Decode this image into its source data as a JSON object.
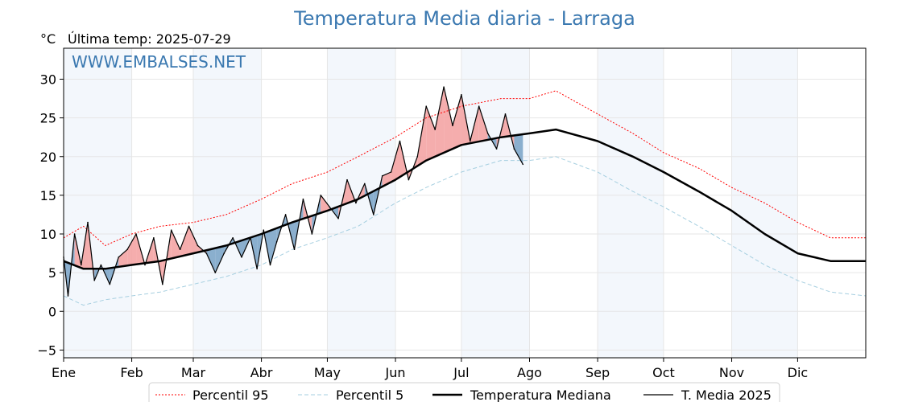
{
  "chart_data": {
    "type": "line",
    "title": "Temperatura Media diaria - Larraga",
    "unit_label": "°C",
    "last_temp_label": "Última temp: 2025-07-29",
    "watermark": "WWW.EMBALSES.NET",
    "xlabel": "",
    "ylabel": "",
    "ylim": [
      -6,
      34
    ],
    "y_ticks": [
      -5,
      0,
      5,
      10,
      15,
      20,
      25,
      30
    ],
    "y_tick_labels": [
      "−5",
      "0",
      "5",
      "10",
      "15",
      "20",
      "25",
      "30"
    ],
    "x_range_days": [
      1,
      366
    ],
    "months": [
      {
        "label": "Ene",
        "start_day": 1
      },
      {
        "label": "Feb",
        "start_day": 32
      },
      {
        "label": "Mar",
        "start_day": 60
      },
      {
        "label": "Abr",
        "start_day": 91
      },
      {
        "label": "May",
        "start_day": 121
      },
      {
        "label": "Jun",
        "start_day": 152
      },
      {
        "label": "Jul",
        "start_day": 182
      },
      {
        "label": "Ago",
        "start_day": 213
      },
      {
        "label": "Sep",
        "start_day": 244
      },
      {
        "label": "Oct",
        "start_day": 274
      },
      {
        "label": "Nov",
        "start_day": 305
      },
      {
        "label": "Dic",
        "start_day": 335
      }
    ],
    "grid": true,
    "legend_position": "bottom-center",
    "series": [
      {
        "name": "Percentil 95",
        "style": "dotted",
        "color": "#ff0000",
        "points": [
          [
            1,
            9.5
          ],
          [
            10,
            11
          ],
          [
            20,
            8.5
          ],
          [
            32,
            10
          ],
          [
            45,
            11
          ],
          [
            60,
            11.5
          ],
          [
            75,
            12.5
          ],
          [
            91,
            14.5
          ],
          [
            105,
            16.5
          ],
          [
            121,
            18
          ],
          [
            135,
            20
          ],
          [
            152,
            22.5
          ],
          [
            166,
            25
          ],
          [
            182,
            26.5
          ],
          [
            200,
            27.5
          ],
          [
            213,
            27.5
          ],
          [
            225,
            28.5
          ],
          [
            244,
            25.5
          ],
          [
            260,
            23
          ],
          [
            274,
            20.5
          ],
          [
            290,
            18.5
          ],
          [
            305,
            16
          ],
          [
            320,
            14
          ],
          [
            335,
            11.5
          ],
          [
            350,
            9.5
          ],
          [
            366,
            9.5
          ]
        ]
      },
      {
        "name": "Percentil 5",
        "style": "dashed",
        "color": "#a6cfe0",
        "points": [
          [
            1,
            2
          ],
          [
            10,
            0.8
          ],
          [
            20,
            1.5
          ],
          [
            32,
            2
          ],
          [
            45,
            2.5
          ],
          [
            60,
            3.5
          ],
          [
            75,
            4.5
          ],
          [
            91,
            6
          ],
          [
            105,
            8
          ],
          [
            121,
            9.5
          ],
          [
            135,
            11
          ],
          [
            152,
            14
          ],
          [
            166,
            16
          ],
          [
            182,
            18
          ],
          [
            200,
            19.5
          ],
          [
            213,
            19.5
          ],
          [
            225,
            20
          ],
          [
            244,
            18
          ],
          [
            260,
            15.5
          ],
          [
            274,
            13.5
          ],
          [
            290,
            11
          ],
          [
            305,
            8.5
          ],
          [
            320,
            6
          ],
          [
            335,
            4
          ],
          [
            350,
            2.5
          ],
          [
            366,
            2
          ]
        ]
      },
      {
        "name": "Temperatura Mediana",
        "style": "solid",
        "color": "#000000",
        "points": [
          [
            1,
            6.5
          ],
          [
            10,
            5.5
          ],
          [
            20,
            5.5
          ],
          [
            32,
            6
          ],
          [
            45,
            6.5
          ],
          [
            60,
            7.5
          ],
          [
            75,
            8.5
          ],
          [
            91,
            10
          ],
          [
            105,
            11.5
          ],
          [
            121,
            13
          ],
          [
            135,
            14.5
          ],
          [
            152,
            17
          ],
          [
            166,
            19.5
          ],
          [
            182,
            21.5
          ],
          [
            200,
            22.5
          ],
          [
            213,
            23
          ],
          [
            225,
            23.5
          ],
          [
            244,
            22
          ],
          [
            260,
            20
          ],
          [
            274,
            18
          ],
          [
            290,
            15.5
          ],
          [
            305,
            13
          ],
          [
            320,
            10
          ],
          [
            335,
            7.5
          ],
          [
            350,
            6.5
          ],
          [
            366,
            6.5
          ]
        ]
      },
      {
        "name": "T. Media 2025",
        "style": "solid",
        "color": "#000000",
        "points": [
          [
            1,
            7
          ],
          [
            3,
            2
          ],
          [
            6,
            10
          ],
          [
            9,
            6
          ],
          [
            12,
            11.5
          ],
          [
            15,
            4
          ],
          [
            18,
            6
          ],
          [
            22,
            3.5
          ],
          [
            26,
            7
          ],
          [
            30,
            8
          ],
          [
            34,
            10
          ],
          [
            38,
            6
          ],
          [
            42,
            9.5
          ],
          [
            46,
            3.5
          ],
          [
            50,
            10.5
          ],
          [
            54,
            8
          ],
          [
            58,
            11
          ],
          [
            62,
            8.5
          ],
          [
            66,
            7.5
          ],
          [
            70,
            5
          ],
          [
            74,
            7.5
          ],
          [
            78,
            9.5
          ],
          [
            82,
            7
          ],
          [
            86,
            9.5
          ],
          [
            89,
            5.5
          ],
          [
            92,
            10.5
          ],
          [
            95,
            6
          ],
          [
            98,
            9
          ],
          [
            102,
            12.5
          ],
          [
            106,
            8
          ],
          [
            110,
            14.5
          ],
          [
            114,
            10
          ],
          [
            118,
            15
          ],
          [
            122,
            13.5
          ],
          [
            126,
            12
          ],
          [
            130,
            17
          ],
          [
            134,
            14
          ],
          [
            138,
            16.5
          ],
          [
            142,
            12.5
          ],
          [
            146,
            17.5
          ],
          [
            150,
            18
          ],
          [
            154,
            22
          ],
          [
            158,
            17
          ],
          [
            162,
            20
          ],
          [
            166,
            26.5
          ],
          [
            170,
            23.5
          ],
          [
            174,
            29
          ],
          [
            178,
            24
          ],
          [
            182,
            28
          ],
          [
            186,
            22
          ],
          [
            190,
            26.5
          ],
          [
            194,
            23
          ],
          [
            198,
            21
          ],
          [
            202,
            25.5
          ],
          [
            206,
            21
          ],
          [
            210,
            19
          ]
        ]
      }
    ]
  }
}
